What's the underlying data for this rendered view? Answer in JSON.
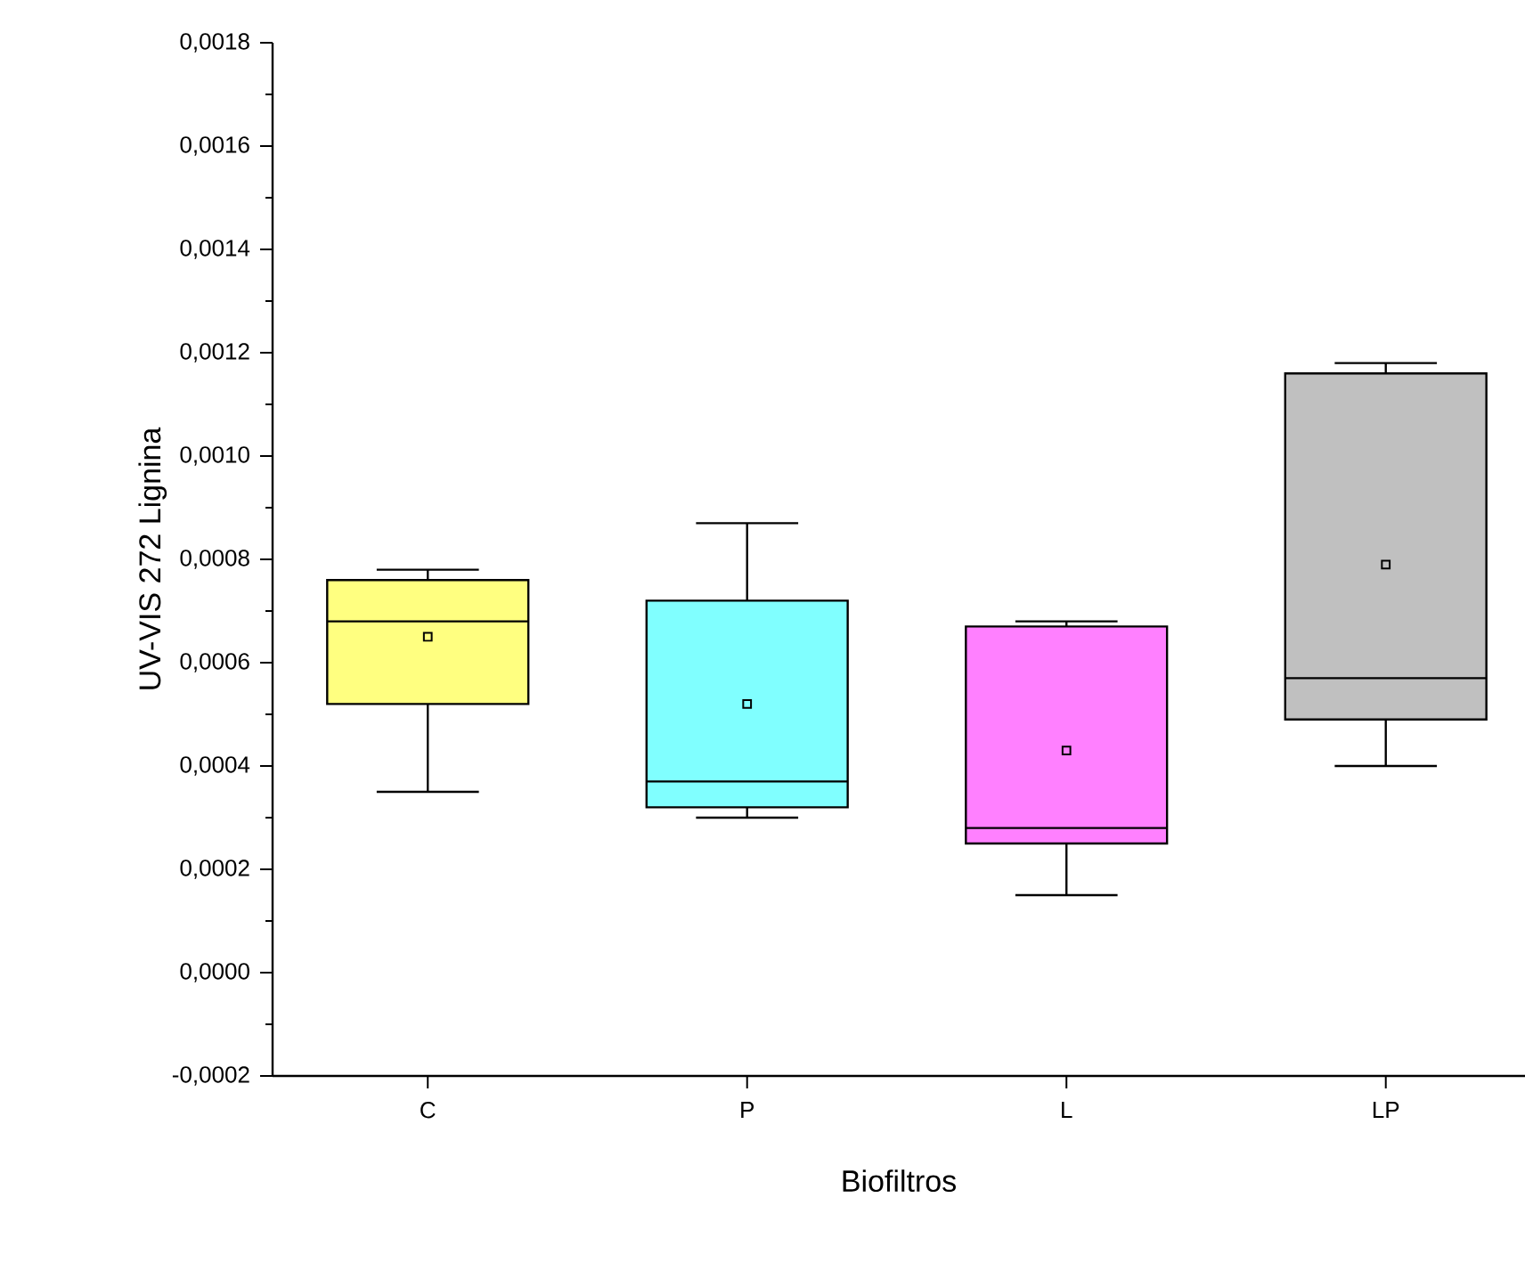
{
  "chart_data": {
    "type": "box",
    "xlabel": "Biofiltros",
    "ylabel": "UV-VIS 272 Lignina",
    "categories": [
      "C",
      "P",
      "L",
      "LP"
    ],
    "colors": [
      "#ffff80",
      "#80ffff",
      "#ff80ff",
      "#c0c0c0"
    ],
    "ylim": [
      -0.0002,
      0.0018
    ],
    "yticks": [
      {
        "value": -0.0002,
        "label": "-0,0002"
      },
      {
        "value": 0.0,
        "label": "0,0000"
      },
      {
        "value": 0.0002,
        "label": "0,0002"
      },
      {
        "value": 0.0004,
        "label": "0,0004"
      },
      {
        "value": 0.0006,
        "label": "0,0006"
      },
      {
        "value": 0.0008,
        "label": "0,0008"
      },
      {
        "value": 0.001,
        "label": "0,0010"
      },
      {
        "value": 0.0012,
        "label": "0,0012"
      },
      {
        "value": 0.0014,
        "label": "0,0014"
      },
      {
        "value": 0.0016,
        "label": "0,0016"
      },
      {
        "value": 0.0018,
        "label": "0,0018"
      }
    ],
    "boxes": [
      {
        "low": 0.00035,
        "q1": 0.00052,
        "median": 0.00068,
        "q3": 0.00076,
        "high": 0.00078,
        "mean": 0.00065
      },
      {
        "low": 0.0003,
        "q1": 0.00032,
        "median": 0.00037,
        "q3": 0.00072,
        "high": 0.00087,
        "mean": 0.00052
      },
      {
        "low": 0.00015,
        "q1": 0.00025,
        "median": 0.00028,
        "q3": 0.00067,
        "high": 0.00068,
        "mean": 0.00043
      },
      {
        "low": 0.0004,
        "q1": 0.00049,
        "median": 0.00057,
        "q3": 0.00116,
        "high": 0.00118,
        "mean": 0.00079
      }
    ]
  }
}
